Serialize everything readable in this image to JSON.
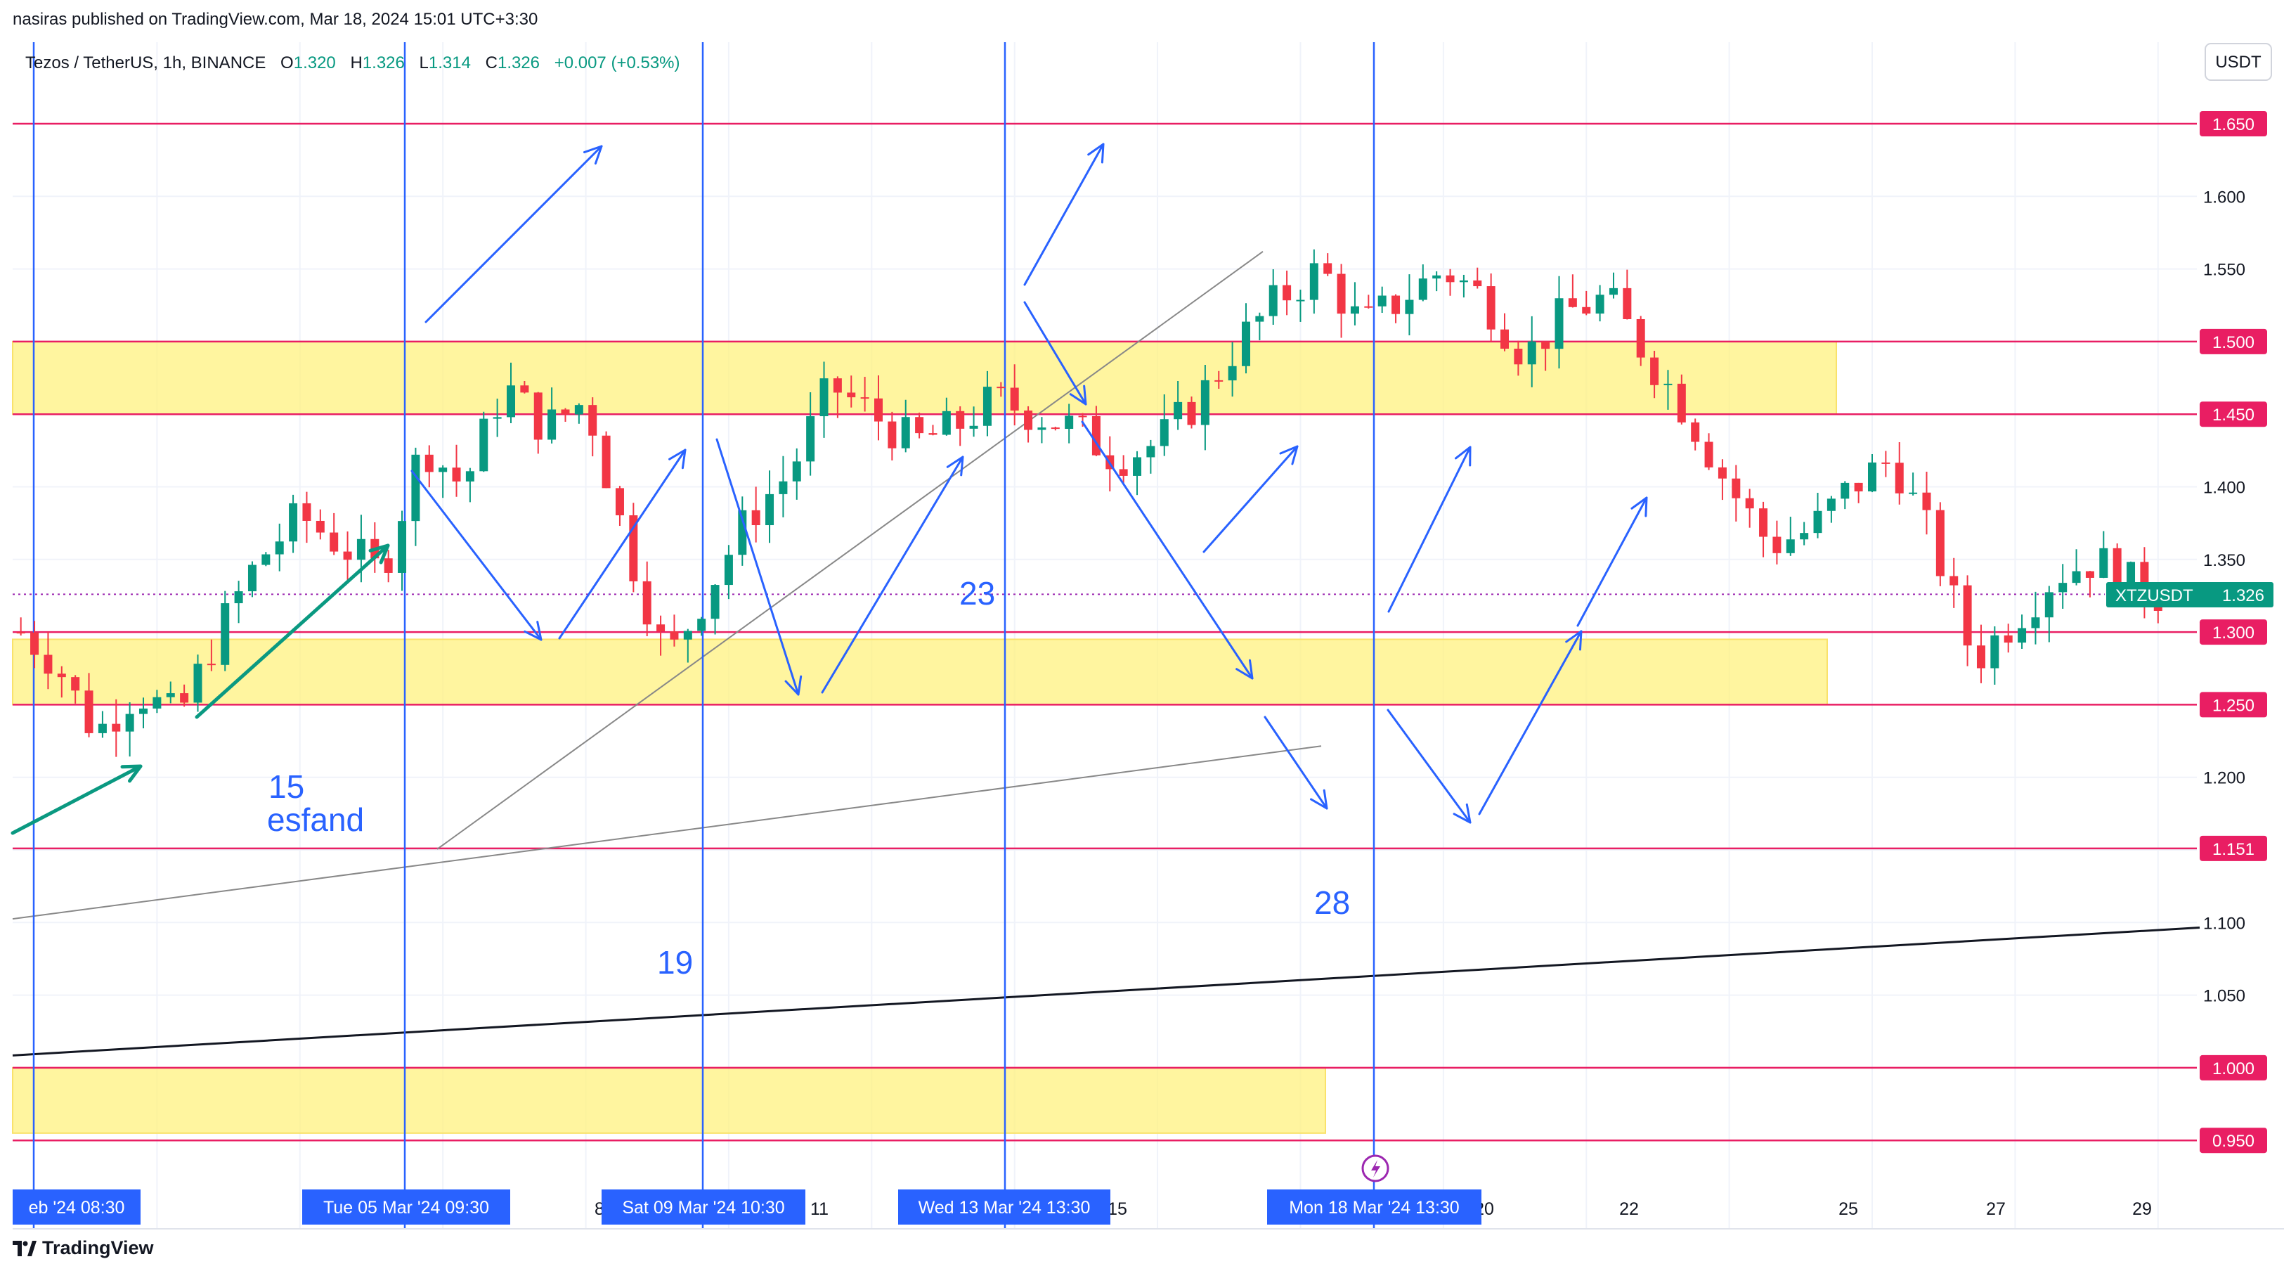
{
  "header": {
    "published_by": "nasiras published on TradingView.com, Mar 18, 2024 15:01 UTC+3:30"
  },
  "symbol": {
    "name": "Tezos / TetherUS, 1h, BINANCE",
    "o_label": "O",
    "o": "1.320",
    "h_label": "H",
    "h": "1.326",
    "l_label": "L",
    "l": "1.314",
    "c_label": "C",
    "c": "1.326",
    "change": "+0.007 (+0.53%)"
  },
  "currency_button": "USDT",
  "ticker_label": {
    "name": "XTZUSDT",
    "price": "1.326"
  },
  "footer": {
    "brand": "TradingView"
  },
  "colors": {
    "up": "#089981",
    "down": "#f23645",
    "level_line": "#e91e63",
    "zone": "#fff176",
    "annotation": "#2962ff",
    "teal_arrow": "#0a9981"
  },
  "chart_data": {
    "type": "candlestick",
    "y_axis": {
      "min": 0.95,
      "max": 1.65,
      "ticks": [
        "1.600",
        "1.550",
        "1.400",
        "1.350",
        "1.200",
        "1.100",
        "1.050"
      ]
    },
    "x_axis": {
      "ticks": [
        "8",
        "11",
        "15",
        "20",
        "22",
        "25",
        "27",
        "29"
      ],
      "highlighted": [
        "eb '24  08:30",
        "Tue 05 Mar '24  09:30",
        "Sat 09 Mar '24  10:30",
        "Wed 13 Mar '24  13:30",
        "Mon 18 Mar '24  13:30"
      ]
    },
    "levels": [
      "1.650",
      "1.500",
      "1.450",
      "1.300",
      "1.250",
      "1.151",
      "1.000",
      "0.950"
    ],
    "zones": [
      [
        1.45,
        1.5
      ],
      [
        1.25,
        1.295
      ],
      [
        0.955,
        1.0
      ]
    ],
    "vertical_lines": [
      "eb '24  08:30",
      "Tue 05 Mar '24  09:30",
      "Sat 09 Mar '24  10:30",
      "Wed 13 Mar '24  13:30",
      "Mon 18 Mar '24  13:30"
    ],
    "annotations": [
      "15",
      "esfand",
      "19",
      "23",
      "28"
    ],
    "price_path": [
      [
        0.5,
        1.3
      ],
      [
        3,
        1.28
      ],
      [
        6,
        1.23
      ],
      [
        9,
        1.26
      ],
      [
        12,
        1.24
      ],
      [
        15,
        1.3
      ],
      [
        18,
        1.35
      ],
      [
        21,
        1.38
      ],
      [
        24,
        1.36
      ],
      [
        27,
        1.34
      ],
      [
        30,
        1.43
      ],
      [
        33,
        1.4
      ],
      [
        36,
        1.47
      ],
      [
        39,
        1.44
      ],
      [
        42,
        1.46
      ],
      [
        45,
        1.36
      ],
      [
        48,
        1.28
      ],
      [
        51,
        1.33
      ],
      [
        54,
        1.38
      ],
      [
        57,
        1.41
      ],
      [
        60,
        1.47
      ],
      [
        63,
        1.45
      ],
      [
        66,
        1.43
      ],
      [
        69,
        1.44
      ],
      [
        72,
        1.46
      ],
      [
        75,
        1.45
      ],
      [
        78,
        1.44
      ],
      [
        81,
        1.42
      ],
      [
        84,
        1.43
      ],
      [
        87,
        1.46
      ],
      [
        90,
        1.5
      ],
      [
        93,
        1.53
      ],
      [
        96,
        1.55
      ],
      [
        99,
        1.51
      ],
      [
        102,
        1.53
      ],
      [
        105,
        1.55
      ],
      [
        108,
        1.53
      ],
      [
        111,
        1.49
      ],
      [
        114,
        1.52
      ],
      [
        117,
        1.53
      ],
      [
        120,
        1.49
      ],
      [
        123,
        1.45
      ],
      [
        126,
        1.4
      ],
      [
        129,
        1.36
      ],
      [
        132,
        1.37
      ],
      [
        135,
        1.4
      ],
      [
        138,
        1.42
      ],
      [
        141,
        1.36
      ],
      [
        144,
        1.28
      ],
      [
        147,
        1.31
      ],
      [
        150,
        1.34
      ],
      [
        153,
        1.35
      ],
      [
        156,
        1.33
      ],
      [
        157.5,
        1.326
      ]
    ]
  }
}
